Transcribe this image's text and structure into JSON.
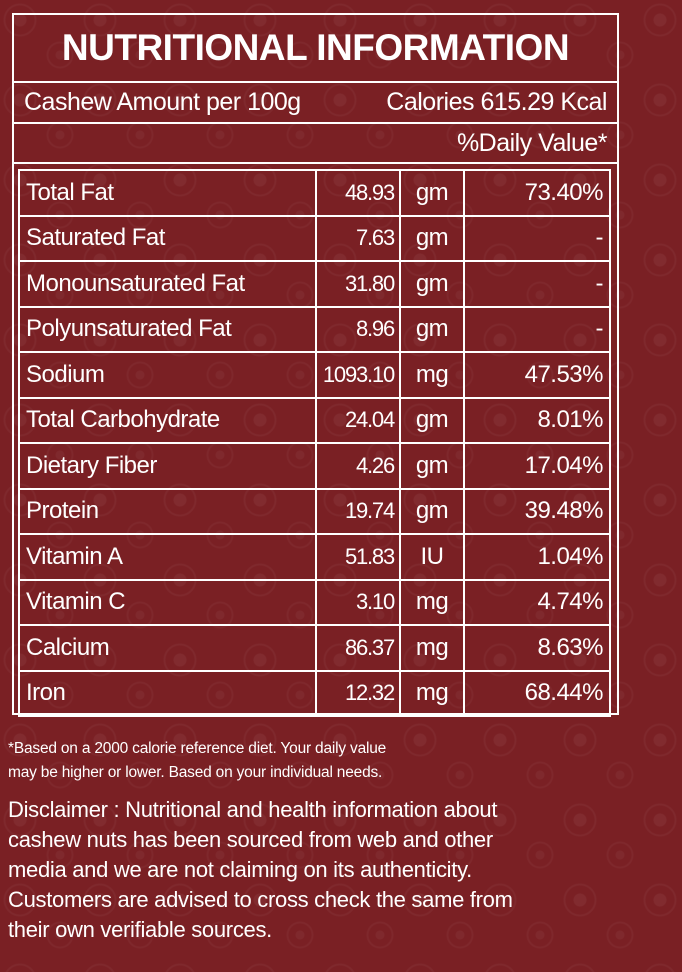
{
  "title": "NUTRITIONAL INFORMATION",
  "amount_label": "Cashew Amount per 100g",
  "calories_label": "Calories 615.29 Kcal",
  "daily_value_header": "%Daily Value*",
  "rows": [
    {
      "name": "Total Fat",
      "value": "48.93",
      "unit": "gm",
      "dv": "73.40%"
    },
    {
      "name": "Saturated Fat",
      "value": "7.63",
      "unit": "gm",
      "dv": "-"
    },
    {
      "name": "Monounsaturated Fat",
      "value": "31.80",
      "unit": "gm",
      "dv": "-"
    },
    {
      "name": "Polyunsaturated Fat",
      "value": "8.96",
      "unit": "gm",
      "dv": "-"
    },
    {
      "name": "Sodium",
      "value": "1093.10",
      "unit": "mg",
      "dv": "47.53%"
    },
    {
      "name": "Total Carbohydrate",
      "value": "24.04",
      "unit": "gm",
      "dv": "8.01%"
    },
    {
      "name": "Dietary Fiber",
      "value": "4.26",
      "unit": "gm",
      "dv": "17.04%"
    },
    {
      "name": "Protein",
      "value": "19.74",
      "unit": "gm",
      "dv": "39.48%"
    },
    {
      "name": "Vitamin A",
      "value": "51.83",
      "unit": "IU",
      "dv": "1.04%"
    },
    {
      "name": "Vitamin C",
      "value": "3.10",
      "unit": "mg",
      "dv": "4.74%"
    },
    {
      "name": "Calcium",
      "value": "86.37",
      "unit": "mg",
      "dv": "8.63%"
    },
    {
      "name": "Iron",
      "value": "12.32",
      "unit": "mg",
      "dv": "68.44%"
    }
  ],
  "footnote": {
    "line1": "*Based on a 2000 calorie reference diet. Your daily value",
    "line2": "may be higher or lower. Based on your individual needs."
  },
  "disclaimer": {
    "line1": "Disclaimer : Nutritional and health information about",
    "line2": "cashew nuts has been sourced from web and other",
    "line3": "media and we are not claiming on its authenticity.",
    "line4": "Customers are advised to cross check the same from",
    "line5": "their own verifiable sources."
  },
  "colors": {
    "background": "#7a2024",
    "text": "#ffffff"
  }
}
